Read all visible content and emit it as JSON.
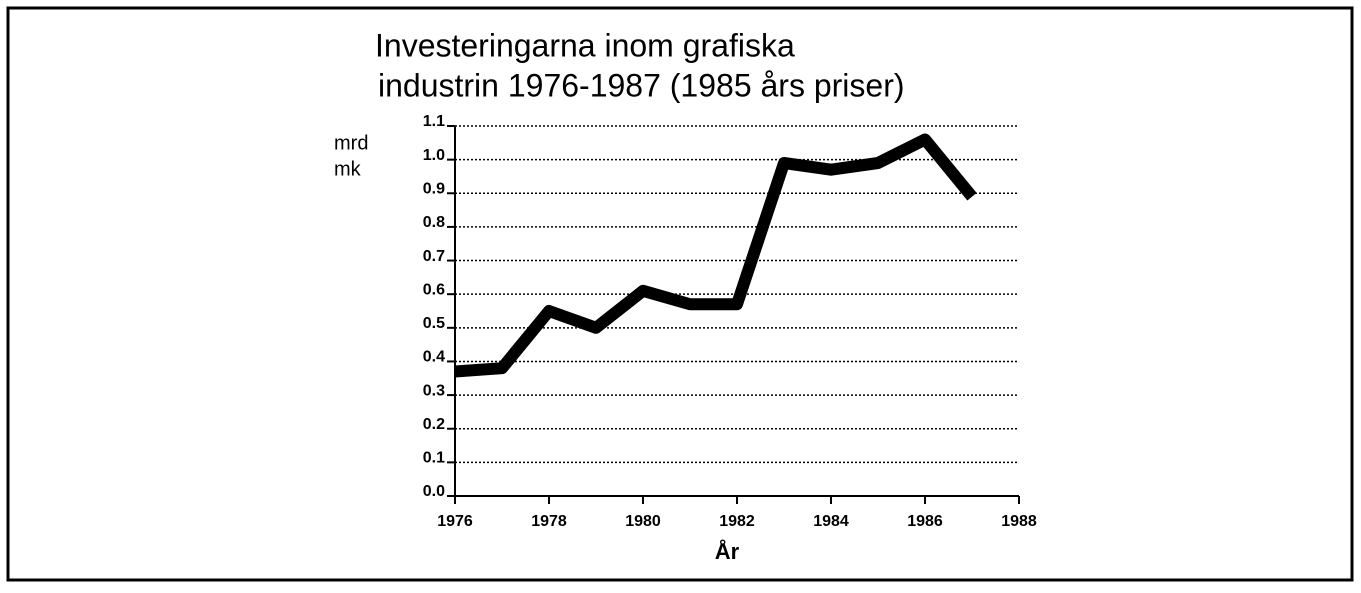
{
  "chart_data": {
    "type": "line",
    "title": [
      "Investeringarna inom grafiska",
      "industrin 1976-1987 (1985 års priser)"
    ],
    "ylabel": [
      "mrd",
      "mk"
    ],
    "xlabel": "År",
    "x": [
      1976,
      1977,
      1978,
      1979,
      1980,
      1981,
      1982,
      1983,
      1984,
      1985,
      1986,
      1987
    ],
    "series": [
      {
        "color": "#000000",
        "values": [
          0.37,
          0.38,
          0.55,
          0.5,
          0.61,
          0.57,
          0.57,
          0.99,
          0.97,
          0.99,
          1.06,
          0.89
        ]
      }
    ],
    "xlim": [
      1976,
      1988
    ],
    "xticks": [
      1976,
      1978,
      1980,
      1982,
      1984,
      1986,
      1988
    ],
    "ylim": [
      0,
      1.1
    ],
    "yticks": [
      {
        "value": 0,
        "label": "0.0"
      },
      0.1,
      0.2,
      0.3,
      0.4,
      0.5,
      0.6,
      0.7,
      0.8,
      0.9,
      {
        "value": 1,
        "label": "1.0"
      },
      1.1
    ],
    "grid": true
  }
}
